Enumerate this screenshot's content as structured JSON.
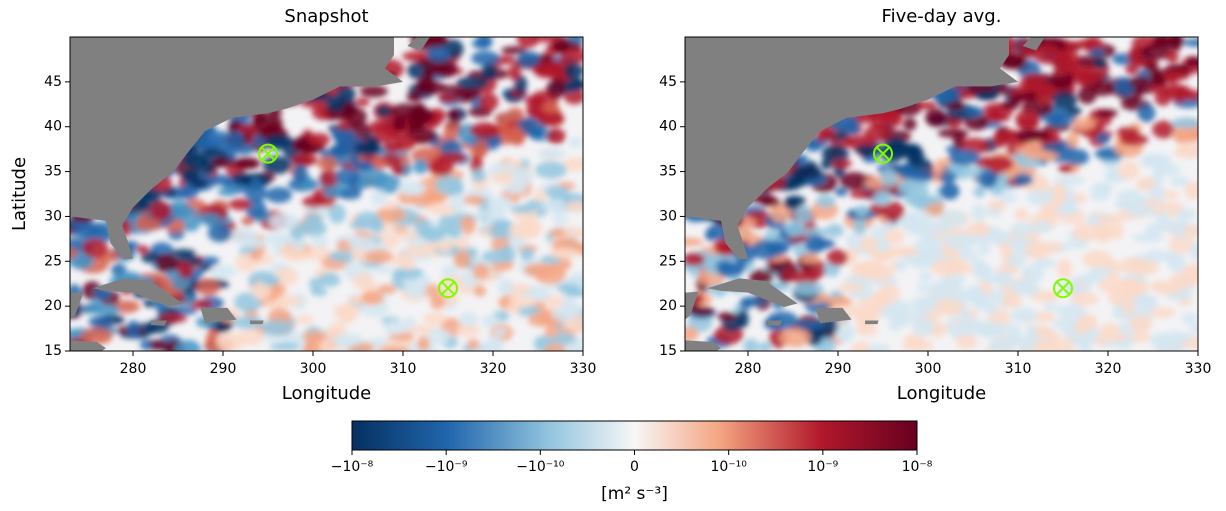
{
  "chart_data": [
    {
      "type": "heatmap",
      "title": "Snapshot",
      "xlabel": "Longitude",
      "ylabel": "Latitude",
      "xlim": [
        273,
        330
      ],
      "ylim": [
        15,
        50
      ],
      "xticks": [
        280,
        290,
        300,
        310,
        320,
        330
      ],
      "yticks": [
        15,
        20,
        25,
        30,
        35,
        40,
        45
      ],
      "markers": [
        {
          "lon": 295,
          "lat": 37
        },
        {
          "lon": 315,
          "lat": 22
        }
      ],
      "marker_color": "#7cfc00"
    },
    {
      "type": "heatmap",
      "title": "Five-day avg.",
      "xlabel": "Longitude",
      "xlim": [
        273,
        330
      ],
      "ylim": [
        15,
        50
      ],
      "xticks": [
        280,
        290,
        300,
        310,
        320,
        330
      ],
      "yticks": [
        15,
        20,
        25,
        30,
        35,
        40,
        45
      ],
      "markers": [
        {
          "lon": 295,
          "lat": 37
        },
        {
          "lon": 315,
          "lat": 22
        }
      ],
      "marker_color": "#7cfc00"
    }
  ],
  "colorbar": {
    "scale": "symlog",
    "linthresh": 1e-10,
    "lim": [
      -1e-08,
      1e-08
    ],
    "ticks": [
      {
        "value": -1e-08,
        "label": "−10⁻⁸"
      },
      {
        "value": -1e-09,
        "label": "−10⁻⁹"
      },
      {
        "value": -1e-10,
        "label": "−10⁻¹⁰"
      },
      0,
      {
        "value": 1e-10,
        "label": "10⁻¹⁰"
      },
      {
        "value": 1e-09,
        "label": "10⁻⁹"
      },
      {
        "value": 1e-08,
        "label": "10⁻⁸"
      }
    ],
    "label": "[m² s⁻³]"
  }
}
